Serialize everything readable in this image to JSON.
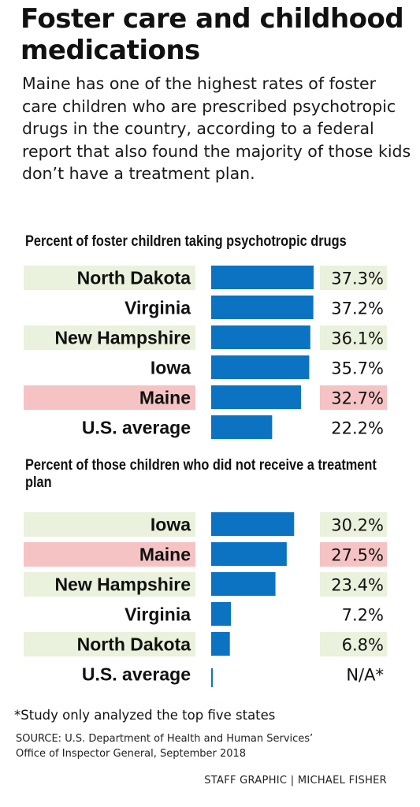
{
  "header": {
    "title": "Foster care and childhood medications",
    "intro": "Maine has one of the highest rates of foster care children who are prescribed psychotropic drugs in the country, according to a federal report that also found the majority of those kids don’t have a treatment plan."
  },
  "colors": {
    "bar": "#0b73c2",
    "highlight_green": "#eaf1dc",
    "highlight_red": "#f5c3c4"
  },
  "chart_data": [
    {
      "type": "bar",
      "orientation": "horizontal",
      "title": "Percent of foster children taking psychotropic drugs",
      "categories": [
        "North Dakota",
        "Virginia",
        "New Hampshire",
        "Iowa",
        "Maine",
        "U.S. average"
      ],
      "values": [
        37.3,
        37.2,
        36.1,
        35.7,
        32.7,
        22.2
      ],
      "value_labels": [
        "37.3%",
        "37.2%",
        "36.1%",
        "35.7%",
        "32.7%",
        "22.2%"
      ],
      "row_highlight": [
        "green",
        "none",
        "green",
        "none",
        "red",
        "none"
      ],
      "xlim": [
        0,
        37.3
      ],
      "grid": false,
      "legend": "none"
    },
    {
      "type": "bar",
      "orientation": "horizontal",
      "title": "Percent of those children who did not receive a treatment plan",
      "categories": [
        "Iowa",
        "Maine",
        "New Hampshire",
        "Virginia",
        "North Dakota",
        "U.S. average"
      ],
      "values": [
        30.2,
        27.5,
        23.4,
        7.2,
        6.8,
        null
      ],
      "value_labels": [
        "30.2%",
        "27.5%",
        "23.4%",
        "7.2%",
        "6.8%",
        "N/A*"
      ],
      "row_highlight": [
        "green",
        "red",
        "green",
        "none",
        "green",
        "none"
      ],
      "xlim": [
        0,
        37.3
      ],
      "grid": false,
      "legend": "none"
    }
  ],
  "footer": {
    "footnote": "*Study only analyzed the top five states",
    "source_line1": "SOURCE: U.S. Department of Health and Human Services’",
    "source_line2": "Office of Inspector General, September 2018",
    "credit": "STAFF GRAPHIC | MICHAEL FISHER"
  }
}
